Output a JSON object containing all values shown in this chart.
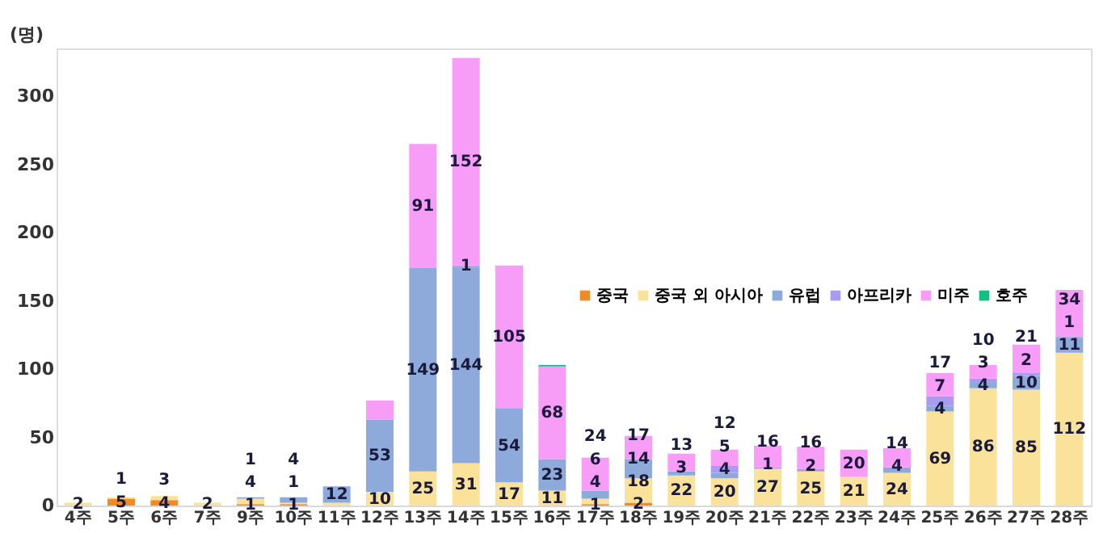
{
  "chart_data": {
    "type": "bar",
    "stacked": true,
    "ylabel": "(명)",
    "ylim": [
      0,
      335
    ],
    "yticks": [
      0,
      50,
      100,
      150,
      200,
      250,
      300
    ],
    "grid": false,
    "legend": "right",
    "categories": [
      "4주",
      "5주",
      "6주",
      "7주",
      "9주",
      "10주",
      "11주",
      "12주",
      "13주",
      "14주",
      "15주",
      "16주",
      "17주",
      "18주",
      "19주",
      "20주",
      "21주",
      "22주",
      "23주",
      "24주",
      "25주",
      "26주",
      "27주",
      "28주"
    ],
    "series": [
      {
        "name": "중국",
        "color": "#f08a24",
        "values": [
          null,
          5,
          4,
          null,
          1,
          1,
          null,
          null,
          null,
          null,
          null,
          null,
          1,
          2,
          null,
          null,
          null,
          null,
          null,
          null,
          null,
          null,
          null,
          null
        ],
        "value_labels": [
          null,
          "5",
          "4",
          null,
          "1",
          "1",
          null,
          null,
          null,
          null,
          null,
          null,
          "1",
          "2",
          null,
          null,
          null,
          null,
          null,
          null,
          null,
          null,
          null,
          null
        ]
      },
      {
        "name": "중국 외 아시아",
        "color": "#fbe29b",
        "values": [
          2,
          1,
          3,
          2,
          4,
          1,
          2,
          10,
          25,
          31,
          17,
          11,
          4,
          18,
          22,
          20,
          27,
          25,
          21,
          24,
          69,
          86,
          85,
          112
        ],
        "value_labels": [
          "2",
          "1",
          "3",
          "2",
          "4",
          "1",
          null,
          "10",
          "25",
          "31",
          "17",
          "11",
          "4",
          "18",
          "22",
          "20",
          "27",
          "25",
          "21",
          "24",
          "69",
          "86",
          "85",
          "112"
        ]
      },
      {
        "name": "유럽",
        "color": "#8eaadb",
        "values": [
          null,
          null,
          null,
          null,
          1,
          4,
          12,
          53,
          149,
          144,
          54,
          23,
          6,
          14,
          3,
          4,
          null,
          null,
          null,
          4,
          4,
          4,
          10,
          11
        ],
        "value_labels": [
          null,
          null,
          null,
          null,
          "1",
          "4",
          "12",
          "53",
          "149",
          "144",
          "54",
          "23",
          "6",
          "14",
          "3",
          "4",
          null,
          null,
          null,
          "4",
          "4",
          "4",
          "10",
          "11"
        ]
      },
      {
        "name": "아프리카",
        "color": "#a89cf0",
        "values": [
          null,
          null,
          null,
          null,
          null,
          null,
          null,
          null,
          null,
          1,
          null,
          null,
          null,
          null,
          null,
          5,
          1,
          2,
          null,
          null,
          7,
          3,
          2,
          1
        ],
        "value_labels": [
          null,
          null,
          null,
          null,
          null,
          null,
          null,
          null,
          null,
          "1",
          null,
          null,
          null,
          null,
          null,
          "5",
          "1",
          "2",
          null,
          null,
          "7",
          "3",
          "2",
          "1"
        ]
      },
      {
        "name": "미주",
        "color": "#f79cf7",
        "values": [
          null,
          null,
          null,
          null,
          null,
          null,
          null,
          14,
          91,
          152,
          105,
          68,
          24,
          17,
          13,
          12,
          16,
          16,
          20,
          14,
          17,
          10,
          21,
          34
        ],
        "value_labels": [
          null,
          null,
          null,
          null,
          null,
          null,
          null,
          null,
          "91",
          "152",
          "105",
          "68",
          "24",
          "17",
          "13",
          "12",
          "16",
          "16",
          "20",
          "14",
          "17",
          "10",
          "21",
          "34"
        ]
      },
      {
        "name": "호주",
        "color": "#10c080",
        "values": [
          null,
          null,
          null,
          null,
          null,
          null,
          null,
          null,
          null,
          null,
          null,
          1,
          null,
          null,
          null,
          null,
          null,
          null,
          null,
          null,
          null,
          null,
          null,
          null
        ],
        "value_labels": [
          null,
          null,
          null,
          null,
          null,
          null,
          null,
          null,
          null,
          null,
          null,
          null,
          null,
          null,
          null,
          null,
          null,
          null,
          null,
          null,
          null,
          null,
          null,
          null
        ]
      }
    ]
  }
}
